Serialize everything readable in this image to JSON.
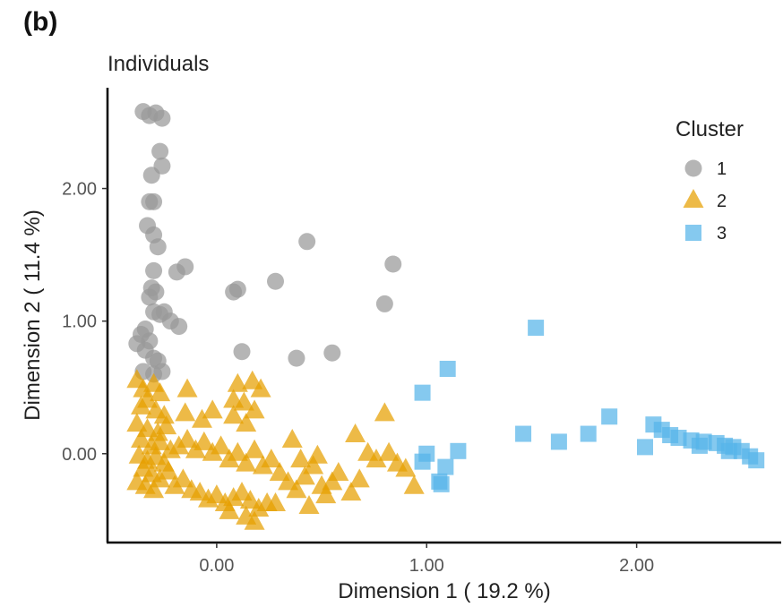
{
  "panel_label": "(b)",
  "chart_data": {
    "type": "scatter",
    "title": "Individuals",
    "xlabel": "Dimension 1 ( 19.2 %)",
    "ylabel": "Dimension 2 ( 11.4 %)",
    "xlim": [
      -0.52,
      2.68
    ],
    "ylim": [
      -0.67,
      2.76
    ],
    "x_ticks": [
      0.0,
      1.0,
      2.0
    ],
    "x_tick_labels": [
      "0.00",
      "1.00",
      "2.00"
    ],
    "y_ticks": [
      0.0,
      1.0,
      2.0
    ],
    "y_tick_labels": [
      "0.00",
      "1.00",
      "2.00"
    ],
    "grid": false,
    "legend": {
      "title": "Cluster",
      "placement": "top-right"
    },
    "series": [
      {
        "name": "1",
        "marker": "circle",
        "color": "#999999",
        "points": [
          [
            -0.35,
            2.58
          ],
          [
            -0.32,
            2.55
          ],
          [
            -0.29,
            2.57
          ],
          [
            -0.26,
            2.53
          ],
          [
            -0.27,
            2.28
          ],
          [
            -0.26,
            2.17
          ],
          [
            -0.31,
            2.1
          ],
          [
            -0.32,
            1.9
          ],
          [
            -0.3,
            1.9
          ],
          [
            -0.33,
            1.72
          ],
          [
            -0.3,
            1.65
          ],
          [
            -0.28,
            1.56
          ],
          [
            -0.3,
            1.38
          ],
          [
            -0.31,
            1.25
          ],
          [
            -0.29,
            1.22
          ],
          [
            -0.32,
            1.18
          ],
          [
            -0.3,
            1.07
          ],
          [
            -0.27,
            1.05
          ],
          [
            -0.25,
            1.07
          ],
          [
            -0.22,
            1.0
          ],
          [
            -0.34,
            0.94
          ],
          [
            -0.36,
            0.9
          ],
          [
            -0.32,
            0.85
          ],
          [
            -0.38,
            0.83
          ],
          [
            -0.34,
            0.78
          ],
          [
            -0.3,
            0.72
          ],
          [
            -0.28,
            0.7
          ],
          [
            -0.35,
            0.62
          ],
          [
            -0.3,
            0.6
          ],
          [
            -0.26,
            0.62
          ],
          [
            -0.18,
            0.96
          ],
          [
            -0.19,
            1.37
          ],
          [
            -0.15,
            1.41
          ],
          [
            0.08,
            1.22
          ],
          [
            0.1,
            1.24
          ],
          [
            0.28,
            1.3
          ],
          [
            0.43,
            1.6
          ],
          [
            0.84,
            1.43
          ],
          [
            0.8,
            1.13
          ],
          [
            0.12,
            0.77
          ],
          [
            0.38,
            0.72
          ],
          [
            0.55,
            0.76
          ]
        ]
      },
      {
        "name": "2",
        "marker": "triangle",
        "color": "#E69F00",
        "points": [
          [
            -0.38,
            0.55
          ],
          [
            -0.35,
            0.48
          ],
          [
            -0.3,
            0.52
          ],
          [
            -0.27,
            0.45
          ],
          [
            -0.33,
            0.4
          ],
          [
            -0.36,
            0.35
          ],
          [
            -0.29,
            0.32
          ],
          [
            -0.25,
            0.28
          ],
          [
            -0.38,
            0.22
          ],
          [
            -0.33,
            0.18
          ],
          [
            -0.28,
            0.15
          ],
          [
            -0.24,
            0.2
          ],
          [
            -0.36,
            0.1
          ],
          [
            -0.31,
            0.05
          ],
          [
            -0.27,
            0.08
          ],
          [
            -0.22,
            0.02
          ],
          [
            -0.37,
            -0.02
          ],
          [
            -0.33,
            -0.06
          ],
          [
            -0.29,
            -0.03
          ],
          [
            -0.25,
            -0.08
          ],
          [
            -0.35,
            -0.12
          ],
          [
            -0.31,
            -0.16
          ],
          [
            -0.27,
            -0.2
          ],
          [
            -0.23,
            -0.14
          ],
          [
            -0.38,
            -0.22
          ],
          [
            -0.34,
            -0.25
          ],
          [
            -0.3,
            -0.28
          ],
          [
            -0.2,
            -0.25
          ],
          [
            -0.16,
            -0.2
          ],
          [
            -0.12,
            -0.28
          ],
          [
            -0.08,
            -0.3
          ],
          [
            -0.04,
            -0.35
          ],
          [
            0.0,
            -0.32
          ],
          [
            0.04,
            -0.38
          ],
          [
            0.08,
            -0.34
          ],
          [
            0.12,
            -0.3
          ],
          [
            0.16,
            -0.36
          ],
          [
            0.2,
            -0.42
          ],
          [
            0.24,
            -0.38
          ],
          [
            0.14,
            -0.48
          ],
          [
            0.18,
            -0.52
          ],
          [
            0.06,
            -0.44
          ],
          [
            -0.18,
            0.05
          ],
          [
            -0.14,
            0.1
          ],
          [
            -0.1,
            0.02
          ],
          [
            -0.06,
            0.08
          ],
          [
            -0.02,
            0.0
          ],
          [
            0.02,
            0.05
          ],
          [
            0.06,
            -0.05
          ],
          [
            0.1,
            0.0
          ],
          [
            0.14,
            -0.08
          ],
          [
            0.18,
            0.02
          ],
          [
            0.22,
            -0.1
          ],
          [
            0.26,
            -0.05
          ],
          [
            -0.15,
            0.3
          ],
          [
            -0.07,
            0.25
          ],
          [
            -0.02,
            0.32
          ],
          [
            0.08,
            0.28
          ],
          [
            0.14,
            0.22
          ],
          [
            0.18,
            0.32
          ],
          [
            -0.14,
            0.48
          ],
          [
            0.1,
            0.52
          ],
          [
            0.17,
            0.54
          ],
          [
            0.21,
            0.48
          ],
          [
            0.08,
            0.4
          ],
          [
            0.13,
            0.38
          ],
          [
            0.3,
            -0.15
          ],
          [
            0.34,
            -0.22
          ],
          [
            0.38,
            -0.28
          ],
          [
            0.42,
            -0.18
          ],
          [
            0.46,
            -0.1
          ],
          [
            0.5,
            -0.25
          ],
          [
            0.55,
            -0.22
          ],
          [
            0.58,
            -0.15
          ],
          [
            0.64,
            -0.3
          ],
          [
            0.68,
            -0.2
          ],
          [
            0.72,
            0.0
          ],
          [
            0.76,
            -0.05
          ],
          [
            0.82,
            0.0
          ],
          [
            0.86,
            -0.08
          ],
          [
            0.9,
            -0.12
          ],
          [
            0.94,
            -0.25
          ],
          [
            0.66,
            0.14
          ],
          [
            0.8,
            0.3
          ],
          [
            0.4,
            -0.05
          ],
          [
            0.48,
            -0.02
          ],
          [
            0.36,
            0.1
          ],
          [
            0.52,
            -0.32
          ],
          [
            0.28,
            -0.38
          ],
          [
            0.44,
            -0.4
          ]
        ]
      },
      {
        "name": "3",
        "marker": "square",
        "color": "#56B4E9",
        "points": [
          [
            1.52,
            0.95
          ],
          [
            1.1,
            0.64
          ],
          [
            0.98,
            0.46
          ],
          [
            0.98,
            -0.06
          ],
          [
            1.0,
            0.0
          ],
          [
            1.15,
            0.02
          ],
          [
            1.09,
            -0.1
          ],
          [
            1.07,
            -0.23
          ],
          [
            1.06,
            -0.21
          ],
          [
            1.46,
            0.15
          ],
          [
            1.63,
            0.09
          ],
          [
            1.77,
            0.15
          ],
          [
            1.87,
            0.28
          ],
          [
            2.04,
            0.05
          ],
          [
            2.08,
            0.22
          ],
          [
            2.12,
            0.18
          ],
          [
            2.16,
            0.14
          ],
          [
            2.2,
            0.12
          ],
          [
            2.26,
            0.1
          ],
          [
            2.32,
            0.09
          ],
          [
            2.38,
            0.08
          ],
          [
            2.42,
            0.06
          ],
          [
            2.46,
            0.05
          ],
          [
            2.5,
            0.02
          ],
          [
            2.54,
            -0.02
          ],
          [
            2.57,
            -0.05
          ],
          [
            2.44,
            0.02
          ],
          [
            2.3,
            0.06
          ]
        ]
      }
    ]
  }
}
